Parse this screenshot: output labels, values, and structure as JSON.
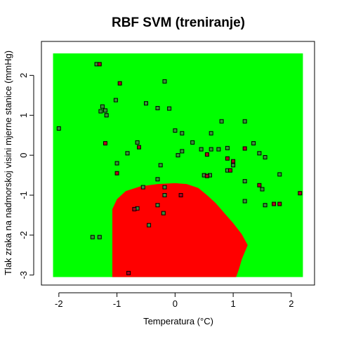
{
  "chart_data": {
    "type": "scatter",
    "title": "RBF SVM (treniranje)",
    "xlabel": "Temperatura (°C)",
    "ylabel": "Tlak zraka na nadmorskoj visini mjerne stanice (mmHg)",
    "xlim": [
      -2.3,
      2.4
    ],
    "ylim": [
      -3.25,
      2.85
    ],
    "xticks": [
      -2,
      -1,
      0,
      1,
      2
    ],
    "yticks": [
      -3,
      -2,
      -1,
      0,
      1,
      2
    ],
    "grid": false,
    "colors": {
      "background_class": "#00ff00",
      "region_class": "#ff0000",
      "point_green": "#3a8f3a",
      "point_red": "#b00020",
      "point_border": "#000000"
    },
    "decision_region": {
      "label": "red region",
      "boundary": [
        [
          -1.08,
          -3.05
        ],
        [
          -1.08,
          -1.35
        ],
        [
          -1.0,
          -1.1
        ],
        [
          -0.85,
          -0.9
        ],
        [
          -0.6,
          -0.78
        ],
        [
          -0.3,
          -0.72
        ],
        [
          0.0,
          -0.7
        ],
        [
          0.2,
          -0.72
        ],
        [
          0.4,
          -0.82
        ],
        [
          0.55,
          -1.0
        ],
        [
          0.7,
          -1.2
        ],
        [
          0.85,
          -1.45
        ],
        [
          1.0,
          -1.7
        ],
        [
          1.15,
          -1.98
        ],
        [
          1.25,
          -2.25
        ],
        [
          1.15,
          -2.6
        ],
        [
          1.1,
          -2.85
        ],
        [
          1.05,
          -3.05
        ]
      ]
    },
    "series": [
      {
        "name": "green",
        "points": [
          [
            -2.0,
            0.67
          ],
          [
            -1.35,
            2.28
          ],
          [
            -1.25,
            1.22
          ],
          [
            -1.28,
            1.1
          ],
          [
            -1.2,
            1.12
          ],
          [
            -1.18,
            1.0
          ],
          [
            -1.02,
            1.38
          ],
          [
            -0.82,
            0.05
          ],
          [
            -1.0,
            -0.2
          ],
          [
            -0.65,
            0.32
          ],
          [
            -0.5,
            1.3
          ],
          [
            -0.3,
            1.18
          ],
          [
            -0.18,
            1.85
          ],
          [
            -0.1,
            1.17
          ],
          [
            0.0,
            0.62
          ],
          [
            0.12,
            0.55
          ],
          [
            0.12,
            0.1
          ],
          [
            0.3,
            0.32
          ],
          [
            0.45,
            0.15
          ],
          [
            0.62,
            0.55
          ],
          [
            0.62,
            0.15
          ],
          [
            0.8,
            0.85
          ],
          [
            0.75,
            0.15
          ],
          [
            0.9,
            0.18
          ],
          [
            1.0,
            -0.25
          ],
          [
            0.9,
            -0.38
          ],
          [
            1.2,
            0.85
          ],
          [
            1.35,
            0.3
          ],
          [
            1.45,
            0.05
          ],
          [
            1.55,
            -0.05
          ],
          [
            1.2,
            -0.65
          ],
          [
            1.5,
            -0.85
          ],
          [
            1.55,
            -1.25
          ],
          [
            1.8,
            -0.48
          ],
          [
            1.2,
            -1.15
          ],
          [
            0.6,
            -0.5
          ],
          [
            0.5,
            -0.5
          ],
          [
            0.05,
            -0.0
          ],
          [
            -0.3,
            -0.6
          ],
          [
            -0.18,
            -0.8
          ],
          [
            -0.55,
            -0.8
          ],
          [
            -0.18,
            -1.0
          ],
          [
            -0.2,
            -1.45
          ],
          [
            -0.25,
            -0.25
          ],
          [
            -0.65,
            -1.33
          ],
          [
            -0.45,
            -1.75
          ],
          [
            -1.3,
            -2.05
          ],
          [
            -1.42,
            -2.05
          ],
          [
            -0.3,
            -1.25
          ]
        ]
      },
      {
        "name": "red",
        "points": [
          [
            -1.3,
            2.28
          ],
          [
            -0.95,
            1.8
          ],
          [
            -1.2,
            0.3
          ],
          [
            -0.62,
            0.2
          ],
          [
            -1.0,
            -0.45
          ],
          [
            -0.8,
            -2.95
          ],
          [
            0.55,
            0.02
          ],
          [
            0.55,
            -0.52
          ],
          [
            0.9,
            -0.08
          ],
          [
            0.95,
            -0.38
          ],
          [
            1.0,
            -0.15
          ],
          [
            1.2,
            0.17
          ],
          [
            1.45,
            -0.75
          ],
          [
            1.7,
            -1.22
          ],
          [
            1.8,
            -1.22
          ],
          [
            2.15,
            -0.95
          ],
          [
            0.1,
            -1.0
          ],
          [
            -0.7,
            -1.35
          ]
        ]
      }
    ]
  }
}
